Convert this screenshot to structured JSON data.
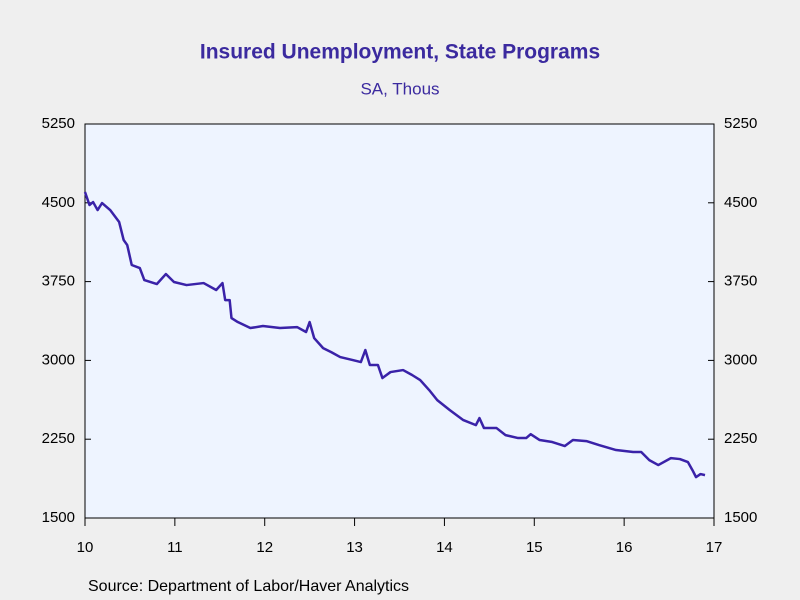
{
  "chart_data": {
    "type": "line",
    "title": "Insured Unemployment, State Programs",
    "subtitle": "SA, Thous",
    "source": "Source:  Department of Labor/Haver Analytics",
    "xlim": [
      2010,
      2017
    ],
    "xticks": [
      {
        "value": 2010,
        "label": "10"
      },
      {
        "value": 2011,
        "label": "11"
      },
      {
        "value": 2012,
        "label": "12"
      },
      {
        "value": 2013,
        "label": "13"
      },
      {
        "value": 2014,
        "label": "14"
      },
      {
        "value": 2015,
        "label": "15"
      },
      {
        "value": 2016,
        "label": "16"
      },
      {
        "value": 2017,
        "label": "17"
      }
    ],
    "ylim": [
      1500,
      5250
    ],
    "yticks": [
      1500,
      2250,
      3000,
      3750,
      4500,
      5250
    ],
    "y2lim": [
      1500,
      5250
    ],
    "y2ticks": [
      1500,
      2250,
      3000,
      3750,
      4500,
      5250
    ],
    "series": [
      {
        "name": "Insured Unemployment, State Programs",
        "color": "#3a22a8",
        "x": [
          2010.0,
          2010.05,
          2010.09,
          2010.14,
          2010.19,
          2010.28,
          2010.38,
          2010.43,
          2010.47,
          2010.52,
          2010.61,
          2010.66,
          2010.8,
          2010.9,
          2010.99,
          2011.13,
          2011.32,
          2011.46,
          2011.53,
          2011.56,
          2011.61,
          2011.63,
          2011.7,
          2011.84,
          2011.98,
          2012.17,
          2012.36,
          2012.46,
          2012.5,
          2012.55,
          2012.65,
          2012.74,
          2012.84,
          2012.98,
          2013.07,
          2013.12,
          2013.17,
          2013.26,
          2013.31,
          2013.4,
          2013.54,
          2013.64,
          2013.73,
          2013.83,
          2013.92,
          2014.06,
          2014.21,
          2014.35,
          2014.39,
          2014.44,
          2014.58,
          2014.68,
          2014.82,
          2014.91,
          2014.96,
          2015.06,
          2015.2,
          2015.34,
          2015.43,
          2015.58,
          2015.72,
          2015.91,
          2016.1,
          2016.19,
          2016.28,
          2016.38,
          2016.52,
          2016.62,
          2016.71,
          2016.76,
          2016.8,
          2016.85,
          2016.9
        ],
        "values": [
          4603,
          4479,
          4507,
          4431,
          4498,
          4431,
          4317,
          4146,
          4098,
          3908,
          3879,
          3765,
          3727,
          3822,
          3746,
          3717,
          3736,
          3670,
          3736,
          3574,
          3574,
          3403,
          3365,
          3308,
          3327,
          3308,
          3317,
          3270,
          3365,
          3213,
          3117,
          3079,
          3032,
          3003,
          2984,
          3098,
          2956,
          2956,
          2832,
          2889,
          2908,
          2861,
          2813,
          2718,
          2622,
          2527,
          2432,
          2384,
          2451,
          2356,
          2356,
          2289,
          2261,
          2261,
          2298,
          2242,
          2223,
          2185,
          2242,
          2232,
          2194,
          2147,
          2128,
          2128,
          2051,
          2004,
          2070,
          2061,
          2032,
          1956,
          1889,
          1918,
          1908
        ]
      }
    ]
  }
}
